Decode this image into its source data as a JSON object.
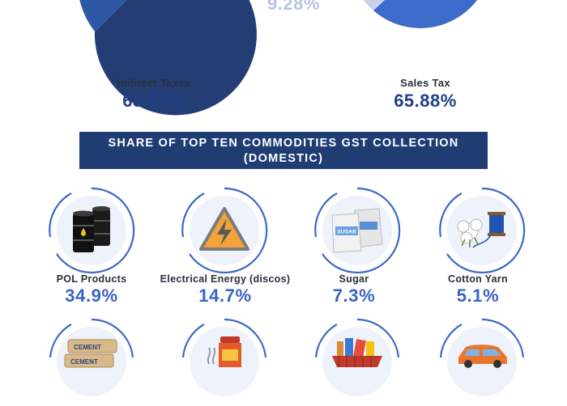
{
  "top": {
    "faded_pct": "9.28%",
    "left_pie": {
      "label": "Indirect Taxes",
      "value": "63.50%",
      "colors": [
        "#243e75",
        "#2f58a4"
      ]
    },
    "right_pie": {
      "label": "Sales Tax",
      "value": "65.88%",
      "colors": [
        "#3c6bc9",
        "#c6d3ea"
      ]
    }
  },
  "banner": {
    "line1": "SHARE OF TOP TEN COMMODITIES GST COLLECTION",
    "line2": "(DOMESTIC)"
  },
  "commodities": [
    {
      "name": "POL Products",
      "value": "34.9%",
      "icon": "oil-barrels-icon"
    },
    {
      "name": "Electrical Energy (discos)",
      "value": "14.7%",
      "icon": "high-voltage-icon"
    },
    {
      "name": "Sugar",
      "value": "7.3%",
      "icon": "sugar-sacks-icon",
      "icon_text": "SUGAR"
    },
    {
      "name": "Cotton Yarn",
      "value": "5.1%",
      "icon": "cotton-yarn-icon"
    }
  ],
  "partial_icons": [
    {
      "icon": "cement-bags-icon",
      "icon_text": "CEMENT"
    },
    {
      "icon": "tea-box-icon"
    },
    {
      "icon": "grocery-basket-icon"
    },
    {
      "icon": "car-icon"
    }
  ],
  "colors": {
    "navy": "#1f3c73",
    "accent_blue": "#3b63c4",
    "ring": "#3e68c8"
  }
}
